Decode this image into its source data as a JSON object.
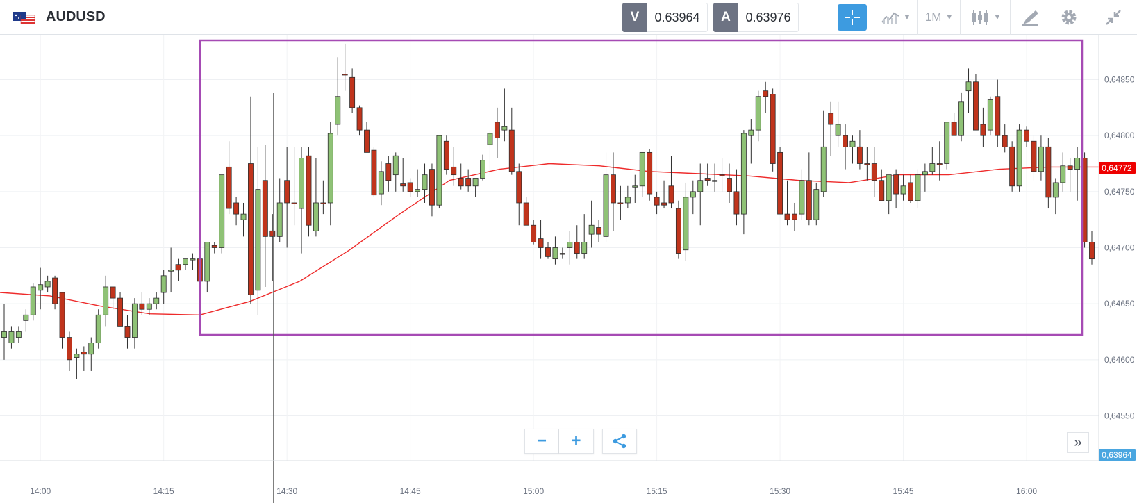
{
  "header": {
    "symbol": "AUDUSD",
    "sell_letter": "V",
    "sell_price": "0.63964",
    "buy_letter": "A",
    "buy_price": "0.63976",
    "interval": "1M",
    "icons": [
      "flag-au-us-icon",
      "crosshair-icon",
      "indicators-icon",
      "candles-icon",
      "draw-icon",
      "gear-icon",
      "collapse-icon"
    ]
  },
  "controls": {
    "zoom_out": "−",
    "zoom_in": "+",
    "share_icon": "share-icon",
    "scroll_end": "»"
  },
  "colors": {
    "up": "#8fc276",
    "down": "#c0341c",
    "ma": "#ee2a2a",
    "selection": "#a64bb4",
    "last_price_bg": "#ee0000",
    "bid_bg": "#4aa6e0"
  },
  "chart_data": {
    "type": "candlestick",
    "y_ticks": [
      "0,64550",
      "0,64600",
      "0,64650",
      "0,64700",
      "0,64750",
      "0,64800",
      "0,64850"
    ],
    "y_tick_values": [
      0.6455,
      0.646,
      0.6465,
      0.647,
      0.6475,
      0.648,
      0.6485
    ],
    "ylim": [
      0.6451,
      0.6489
    ],
    "x_ticks": [
      "14:00",
      "14:15",
      "14:30",
      "14:45",
      "15:00",
      "15:15",
      "15:30",
      "15:45",
      "16:00"
    ],
    "last_price_label": "0,64772",
    "last_price": 0.64772,
    "bid_label": "0,63964",
    "moving_average": [
      0.6466,
      0.64657,
      0.64648,
      0.64641,
      0.6464,
      0.64652,
      0.6467,
      0.64698,
      0.6473,
      0.6476,
      0.6477,
      0.64775,
      0.64773,
      0.64768,
      0.64766,
      0.64764,
      0.6476,
      0.64758,
      0.64765,
      0.64765,
      0.6477,
      0.64772,
      0.64772
    ],
    "candles": [
      [
        0.6462,
        0.6465,
        0.646,
        0.64625,
        "up"
      ],
      [
        0.64615,
        0.6463,
        0.6461,
        0.64625,
        "up"
      ],
      [
        0.6462,
        0.6463,
        0.64615,
        0.64625,
        "up"
      ],
      [
        0.64635,
        0.64645,
        0.64625,
        0.6464,
        "up"
      ],
      [
        0.6464,
        0.64668,
        0.64635,
        0.64665,
        "up"
      ],
      [
        0.64662,
        0.64682,
        0.64645,
        0.64667,
        "up"
      ],
      [
        0.64665,
        0.64675,
        0.6466,
        0.6467,
        "up"
      ],
      [
        0.64673,
        0.64675,
        0.64645,
        0.6465,
        "down"
      ],
      [
        0.6466,
        0.6466,
        0.6461,
        0.6462,
        "down"
      ],
      [
        0.6462,
        0.64625,
        0.6459,
        0.646,
        "down"
      ],
      [
        0.64605,
        0.6461,
        0.64583,
        0.64602,
        "up"
      ],
      [
        0.64607,
        0.64612,
        0.6459,
        0.64605,
        "down"
      ],
      [
        0.64605,
        0.6462,
        0.6459,
        0.64615,
        "up"
      ],
      [
        0.64615,
        0.64645,
        0.6461,
        0.6464,
        "up"
      ],
      [
        0.6464,
        0.64675,
        0.6463,
        0.64665,
        "up"
      ],
      [
        0.64665,
        0.64665,
        0.64645,
        0.64655,
        "down"
      ],
      [
        0.64655,
        0.6466,
        0.6463,
        0.6463,
        "down"
      ],
      [
        0.6463,
        0.6464,
        0.6461,
        0.6462,
        "down"
      ],
      [
        0.6462,
        0.64655,
        0.6461,
        0.6465,
        "up"
      ],
      [
        0.6465,
        0.6466,
        0.6464,
        0.64645,
        "down"
      ],
      [
        0.64645,
        0.64655,
        0.6464,
        0.6465,
        "up"
      ],
      [
        0.6465,
        0.6466,
        0.64645,
        0.64655,
        "up"
      ],
      [
        0.6466,
        0.6468,
        0.6465,
        0.64675,
        "up"
      ],
      [
        0.6468,
        0.647,
        0.6466,
        0.6468,
        "up"
      ],
      [
        0.64685,
        0.6469,
        0.6467,
        0.6468,
        "down"
      ],
      [
        0.64685,
        0.6469,
        0.6468,
        0.6469,
        "up"
      ],
      [
        0.6469,
        0.64695,
        0.6468,
        0.6469,
        "up"
      ],
      [
        0.6469,
        0.647,
        0.6466,
        0.6467,
        "down"
      ],
      [
        0.6467,
        0.64705,
        0.6466,
        0.64705,
        "up"
      ],
      [
        0.647,
        0.64705,
        0.64695,
        0.64702,
        "down"
      ],
      [
        0.647,
        0.64765,
        0.64695,
        0.64765,
        "up"
      ],
      [
        0.64772,
        0.64795,
        0.6473,
        0.64735,
        "down"
      ],
      [
        0.6474,
        0.64745,
        0.6472,
        0.6473,
        "down"
      ],
      [
        0.64725,
        0.6474,
        0.6471,
        0.6473,
        "up"
      ],
      [
        0.64775,
        0.64835,
        0.6465,
        0.64658,
        "down"
      ],
      [
        0.64662,
        0.6479,
        0.6464,
        0.64752,
        "up"
      ],
      [
        0.6476,
        0.64792,
        0.64665,
        0.6471,
        "down"
      ],
      [
        0.64715,
        0.6473,
        0.6467,
        0.6471,
        "down"
      ],
      [
        0.6471,
        0.64762,
        0.64705,
        0.6474,
        "up"
      ],
      [
        0.6476,
        0.6479,
        0.647,
        0.6474,
        "down"
      ],
      [
        0.6474,
        0.6479,
        0.6472,
        0.6474,
        "down"
      ],
      [
        0.64735,
        0.6479,
        0.64695,
        0.6478,
        "up"
      ],
      [
        0.64782,
        0.6479,
        0.6471,
        0.6472,
        "down"
      ],
      [
        0.64715,
        0.6478,
        0.6471,
        0.6474,
        "up"
      ],
      [
        0.6474,
        0.6476,
        0.6473,
        0.6474,
        "down"
      ],
      [
        0.6474,
        0.64812,
        0.6472,
        0.64802,
        "up"
      ],
      [
        0.6481,
        0.6487,
        0.648,
        0.64835,
        "up"
      ],
      [
        0.64855,
        0.64882,
        0.6484,
        0.64855,
        "down"
      ],
      [
        0.64852,
        0.6486,
        0.6482,
        0.64825,
        "down"
      ],
      [
        0.64825,
        0.64827,
        0.648,
        0.64805,
        "down"
      ],
      [
        0.64805,
        0.64812,
        0.64785,
        0.64785,
        "down"
      ],
      [
        0.64787,
        0.6479,
        0.64745,
        0.64747,
        "down"
      ],
      [
        0.64748,
        0.64777,
        0.64738,
        0.64768,
        "up"
      ],
      [
        0.64775,
        0.64782,
        0.6475,
        0.6476,
        "down"
      ],
      [
        0.64782,
        0.64785,
        0.6475,
        0.64765,
        "up"
      ],
      [
        0.64755,
        0.6478,
        0.6475,
        0.64757,
        "down"
      ],
      [
        0.64758,
        0.64762,
        0.64745,
        0.6475,
        "down"
      ],
      [
        0.6475,
        0.6477,
        0.64745,
        0.64752,
        "up"
      ],
      [
        0.64752,
        0.64775,
        0.6474,
        0.64765,
        "up"
      ],
      [
        0.6477,
        0.64775,
        0.64728,
        0.64738,
        "down"
      ],
      [
        0.64738,
        0.648,
        0.64735,
        0.648,
        "up"
      ],
      [
        0.64795,
        0.648,
        0.64765,
        0.6477,
        "down"
      ],
      [
        0.64765,
        0.6479,
        0.64755,
        0.64772,
        "down"
      ],
      [
        0.64762,
        0.64775,
        0.64752,
        0.64755,
        "down"
      ],
      [
        0.64755,
        0.6477,
        0.6475,
        0.64762,
        "down"
      ],
      [
        0.64755,
        0.6476,
        0.64745,
        0.64762,
        "up"
      ],
      [
        0.64762,
        0.64783,
        0.6476,
        0.64778,
        "up"
      ],
      [
        0.64792,
        0.64805,
        0.64765,
        0.64802,
        "up"
      ],
      [
        0.64812,
        0.64825,
        0.6478,
        0.64798,
        "down"
      ],
      [
        0.64808,
        0.64842,
        0.64795,
        0.64805,
        "up"
      ],
      [
        0.64805,
        0.64825,
        0.64765,
        0.64768,
        "down"
      ],
      [
        0.64768,
        0.64775,
        0.6472,
        0.6474,
        "down"
      ],
      [
        0.6474,
        0.64745,
        0.6472,
        0.6472,
        "down"
      ],
      [
        0.6472,
        0.64725,
        0.64703,
        0.64705,
        "down"
      ],
      [
        0.64708,
        0.64725,
        0.6469,
        0.647,
        "down"
      ],
      [
        0.647,
        0.64705,
        0.6469,
        0.64692,
        "down"
      ],
      [
        0.6469,
        0.6471,
        0.64685,
        0.647,
        "up"
      ],
      [
        0.64695,
        0.647,
        0.6469,
        0.64695,
        "down"
      ],
      [
        0.647,
        0.64715,
        0.64685,
        0.64705,
        "up"
      ],
      [
        0.64705,
        0.6472,
        0.6469,
        0.64695,
        "down"
      ],
      [
        0.64695,
        0.6473,
        0.6469,
        0.64705,
        "up"
      ],
      [
        0.64712,
        0.64742,
        0.647,
        0.6472,
        "up"
      ],
      [
        0.64718,
        0.64725,
        0.64705,
        0.64712,
        "down"
      ],
      [
        0.6471,
        0.64785,
        0.64705,
        0.64765,
        "up"
      ],
      [
        0.64765,
        0.64785,
        0.64715,
        0.6474,
        "down"
      ],
      [
        0.6474,
        0.64755,
        0.64725,
        0.6474,
        "down"
      ],
      [
        0.6474,
        0.64755,
        0.64735,
        0.64745,
        "up"
      ],
      [
        0.64755,
        0.64765,
        0.6474,
        0.64755,
        "up"
      ],
      [
        0.64755,
        0.64785,
        0.64745,
        0.64785,
        "up"
      ],
      [
        0.64785,
        0.64788,
        0.64742,
        0.64748,
        "down"
      ],
      [
        0.64745,
        0.6475,
        0.6473,
        0.64738,
        "down"
      ],
      [
        0.6474,
        0.6476,
        0.64735,
        0.64738,
        "down"
      ],
      [
        0.6474,
        0.64782,
        0.64735,
        0.64755,
        "down"
      ],
      [
        0.64735,
        0.64742,
        0.6469,
        0.64695,
        "down"
      ],
      [
        0.64698,
        0.64758,
        0.64688,
        0.64745,
        "up"
      ],
      [
        0.64745,
        0.6476,
        0.6473,
        0.6475,
        "up"
      ],
      [
        0.6475,
        0.64775,
        0.6472,
        0.6476,
        "up"
      ],
      [
        0.6476,
        0.64775,
        0.64755,
        0.64762,
        "down"
      ],
      [
        0.6476,
        0.64775,
        0.6475,
        0.6476,
        "down"
      ],
      [
        0.64765,
        0.6478,
        0.6475,
        0.64765,
        "down"
      ],
      [
        0.64762,
        0.64775,
        0.6474,
        0.6475,
        "down"
      ],
      [
        0.6475,
        0.6477,
        0.6472,
        0.6473,
        "down"
      ],
      [
        0.6473,
        0.64805,
        0.64712,
        0.64802,
        "up"
      ],
      [
        0.648,
        0.64815,
        0.64775,
        0.64805,
        "up"
      ],
      [
        0.64805,
        0.6484,
        0.64795,
        0.64835,
        "up"
      ],
      [
        0.6484,
        0.64848,
        0.6482,
        0.64835,
        "down"
      ],
      [
        0.64837,
        0.64842,
        0.64768,
        0.64775,
        "down"
      ],
      [
        0.64785,
        0.6479,
        0.6473,
        0.6473,
        "down"
      ],
      [
        0.6473,
        0.6476,
        0.6472,
        0.64725,
        "down"
      ],
      [
        0.64725,
        0.6474,
        0.64715,
        0.6473,
        "down"
      ],
      [
        0.6473,
        0.6477,
        0.64725,
        0.6476,
        "up"
      ],
      [
        0.6476,
        0.64785,
        0.6472,
        0.64725,
        "down"
      ],
      [
        0.64725,
        0.64758,
        0.6472,
        0.64752,
        "up"
      ],
      [
        0.6475,
        0.64822,
        0.64745,
        0.6479,
        "up"
      ],
      [
        0.6482,
        0.6483,
        0.64782,
        0.6481,
        "down"
      ],
      [
        0.6481,
        0.6483,
        0.6479,
        0.648,
        "up"
      ],
      [
        0.648,
        0.6481,
        0.6477,
        0.6479,
        "down"
      ],
      [
        0.6479,
        0.648,
        0.64775,
        0.64795,
        "up"
      ],
      [
        0.6479,
        0.64805,
        0.6477,
        0.64775,
        "down"
      ],
      [
        0.64775,
        0.6479,
        0.6476,
        0.64775,
        "down"
      ],
      [
        0.64775,
        0.6479,
        0.64745,
        0.6476,
        "down"
      ],
      [
        0.6476,
        0.6477,
        0.64745,
        0.64742,
        "down"
      ],
      [
        0.64742,
        0.64762,
        0.6473,
        0.64765,
        "up"
      ],
      [
        0.64765,
        0.6477,
        0.64735,
        0.64748,
        "down"
      ],
      [
        0.64748,
        0.64765,
        0.64742,
        0.64755,
        "up"
      ],
      [
        0.64758,
        0.64765,
        0.6474,
        0.64742,
        "down"
      ],
      [
        0.64742,
        0.6477,
        0.64735,
        0.64765,
        "up"
      ],
      [
        0.64765,
        0.64775,
        0.6475,
        0.64768,
        "up"
      ],
      [
        0.64768,
        0.6479,
        0.64765,
        0.64775,
        "up"
      ],
      [
        0.64775,
        0.64795,
        0.6476,
        0.64775,
        "down"
      ],
      [
        0.64775,
        0.64812,
        0.6477,
        0.64812,
        "up"
      ],
      [
        0.64812,
        0.6482,
        0.648,
        0.648,
        "down"
      ],
      [
        0.648,
        0.64838,
        0.64795,
        0.6483,
        "up"
      ],
      [
        0.6484,
        0.6486,
        0.6482,
        0.64848,
        "up"
      ],
      [
        0.64848,
        0.64855,
        0.64805,
        0.64805,
        "down"
      ],
      [
        0.6481,
        0.64825,
        0.6479,
        0.648,
        "down"
      ],
      [
        0.64805,
        0.64835,
        0.648,
        0.64832,
        "up"
      ],
      [
        0.64835,
        0.6485,
        0.6479,
        0.648,
        "down"
      ],
      [
        0.648,
        0.6481,
        0.64785,
        0.6479,
        "down"
      ],
      [
        0.6479,
        0.64795,
        0.6475,
        0.64755,
        "down"
      ],
      [
        0.64755,
        0.6481,
        0.6475,
        0.64805,
        "up"
      ],
      [
        0.64805,
        0.64808,
        0.6479,
        0.64795,
        "down"
      ],
      [
        0.64795,
        0.648,
        0.6476,
        0.64768,
        "down"
      ],
      [
        0.64768,
        0.648,
        0.6476,
        0.6479,
        "up"
      ],
      [
        0.6479,
        0.64798,
        0.64735,
        0.64745,
        "down"
      ],
      [
        0.64745,
        0.64762,
        0.6473,
        0.64758,
        "up"
      ],
      [
        0.64758,
        0.64785,
        0.6475,
        0.64773,
        "up"
      ],
      [
        0.64773,
        0.6478,
        0.6475,
        0.6477,
        "down"
      ],
      [
        0.6477,
        0.6479,
        0.64742,
        0.6478,
        "up"
      ],
      [
        0.6478,
        0.64785,
        0.647,
        0.64705,
        "down"
      ],
      [
        0.64705,
        0.64715,
        0.64685,
        0.6469,
        "down"
      ]
    ]
  }
}
